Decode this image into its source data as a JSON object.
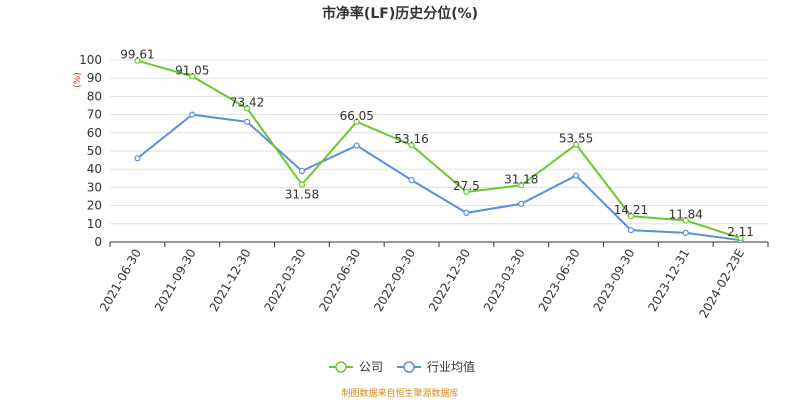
{
  "chart_data": {
    "type": "line",
    "title": "市净率(LF)历史分位(%)",
    "y_unit": "(%)",
    "categories": [
      "2021-06-30",
      "2021-09-30",
      "2021-12-30",
      "2022-03-30",
      "2022-06-30",
      "2022-09-30",
      "2022-12-30",
      "2023-03-30",
      "2023-06-30",
      "2023-09-30",
      "2023-12-31",
      "2024-02-23E"
    ],
    "series": [
      {
        "name": "公司",
        "color": "#6ac72f",
        "values": [
          99.61,
          91.05,
          73.42,
          31.58,
          66.05,
          53.16,
          27.5,
          31.18,
          53.55,
          14.21,
          11.84,
          2.11
        ],
        "labels": [
          "99.61",
          "91.05",
          "73.42",
          "31.58",
          "66.05",
          "53.16",
          "27.5",
          "31.18",
          "53.55",
          "14.21",
          "11.84",
          "2.11"
        ]
      },
      {
        "name": "行业均值",
        "color": "#5b8fde",
        "values": [
          46,
          70,
          66,
          39,
          53,
          34,
          16,
          21,
          36.5,
          6.5,
          5,
          1
        ]
      }
    ],
    "ylim": [
      0,
      100
    ],
    "yticks": [
      0,
      10,
      20,
      30,
      40,
      50,
      60,
      70,
      80,
      90,
      100
    ],
    "grid": true,
    "legend_position": "bottom-center"
  },
  "colors": {
    "unit_label": "#e6261f",
    "source_text": "#d08a1a",
    "axis": "#333333",
    "grid": "#e0e0e0"
  },
  "source": "制图数据来自恒生聚源数据库"
}
